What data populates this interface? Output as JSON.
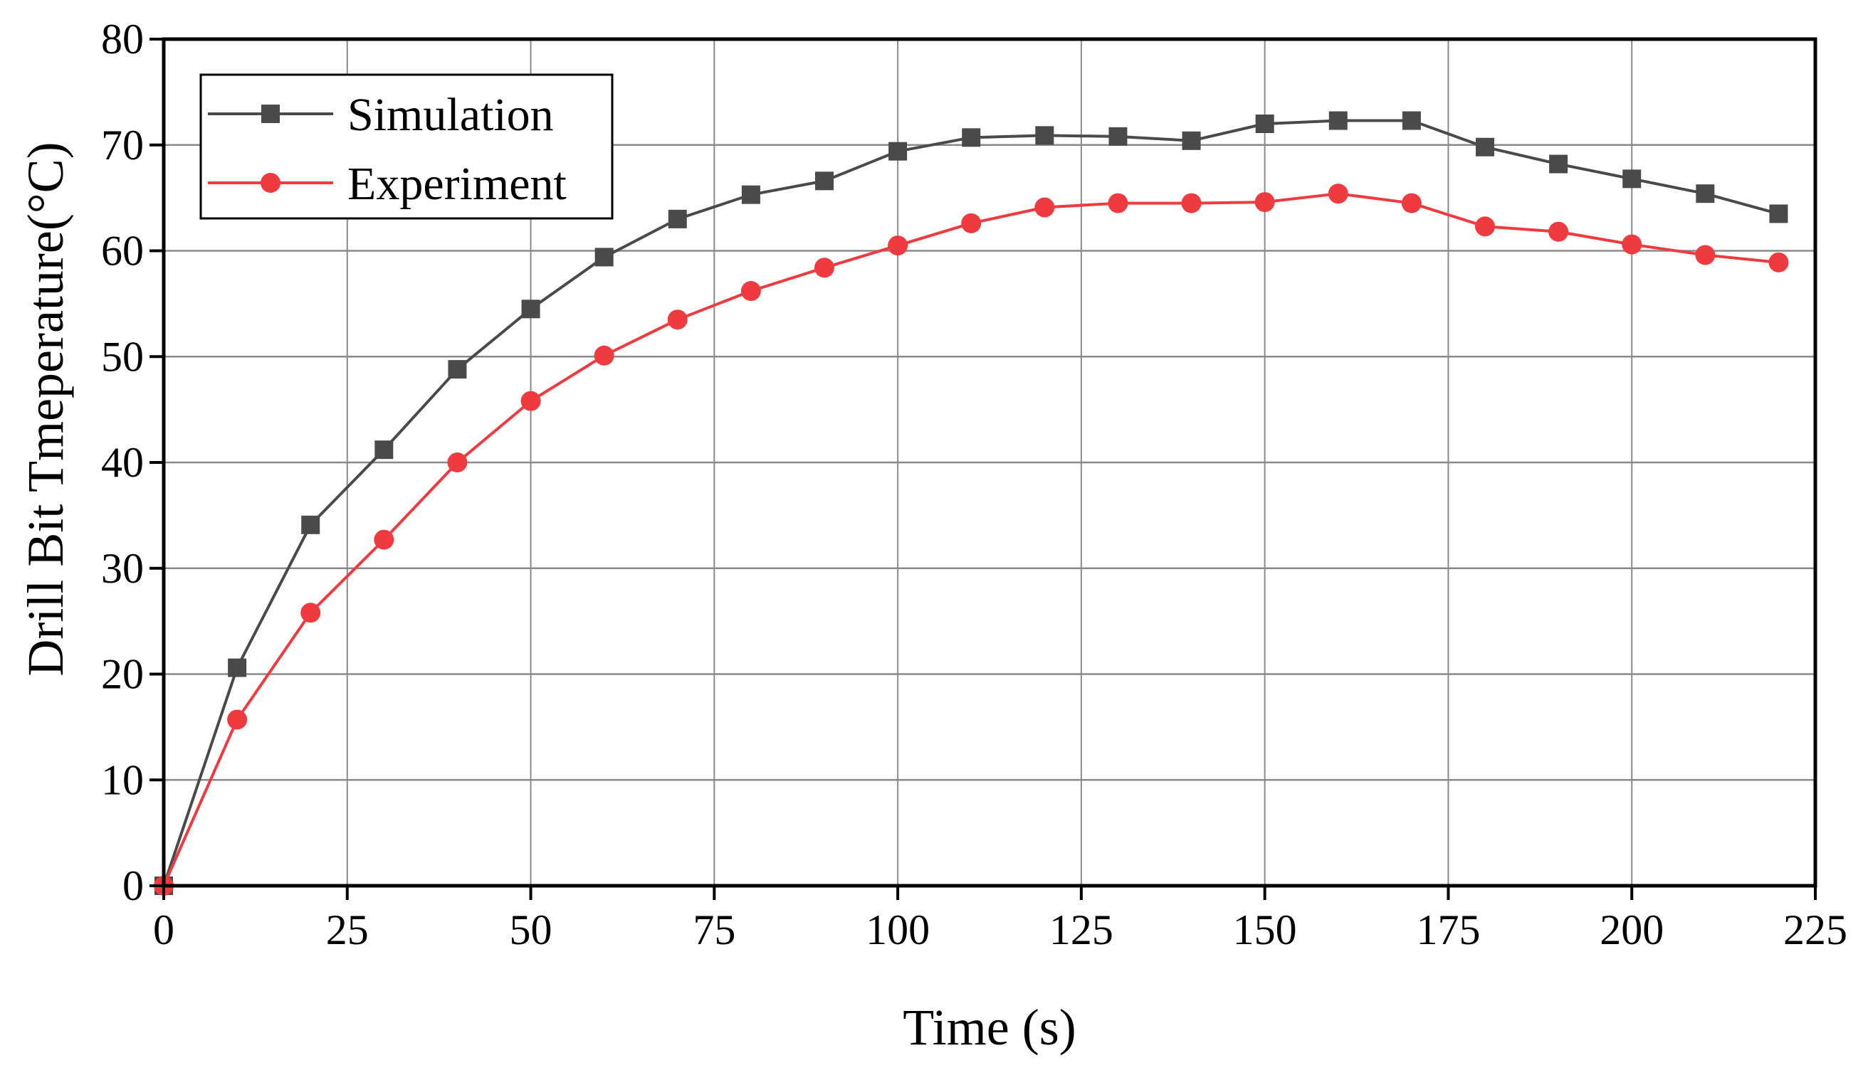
{
  "chart_data": {
    "type": "line",
    "title": "",
    "xlabel": "Time (s)",
    "ylabel": "Drill Bit Tmeperature(°C)",
    "xlim": [
      0,
      225
    ],
    "ylim": [
      0,
      80
    ],
    "xticks": [
      0,
      25,
      50,
      75,
      100,
      125,
      150,
      175,
      200,
      225
    ],
    "yticks": [
      0,
      10,
      20,
      30,
      40,
      50,
      60,
      70,
      80
    ],
    "grid": true,
    "legend_position": "top-left",
    "series": [
      {
        "name": "Simulation",
        "color": "#4a4a4a",
        "marker": "square",
        "x": [
          0,
          10,
          20,
          30,
          40,
          50,
          60,
          70,
          80,
          90,
          100,
          110,
          120,
          130,
          140,
          150,
          160,
          170,
          180,
          190,
          200,
          210,
          220
        ],
        "y": [
          0,
          20.6,
          34.1,
          41.2,
          48.8,
          54.5,
          59.4,
          63.0,
          65.3,
          66.6,
          69.4,
          70.7,
          70.9,
          70.8,
          70.4,
          72.0,
          72.3,
          72.3,
          69.8,
          68.2,
          66.8,
          65.4,
          63.5
        ]
      },
      {
        "name": "Experiment",
        "color": "#ef3a3f",
        "marker": "circle",
        "x": [
          0,
          10,
          20,
          30,
          40,
          50,
          60,
          70,
          80,
          90,
          100,
          110,
          120,
          130,
          140,
          150,
          160,
          170,
          180,
          190,
          200,
          210,
          220
        ],
        "y": [
          0,
          15.7,
          25.8,
          32.7,
          40.0,
          45.8,
          50.1,
          53.5,
          56.2,
          58.4,
          60.5,
          62.6,
          64.1,
          64.5,
          64.5,
          64.6,
          65.4,
          64.5,
          62.3,
          61.8,
          60.6,
          59.6,
          58.9
        ]
      }
    ]
  }
}
